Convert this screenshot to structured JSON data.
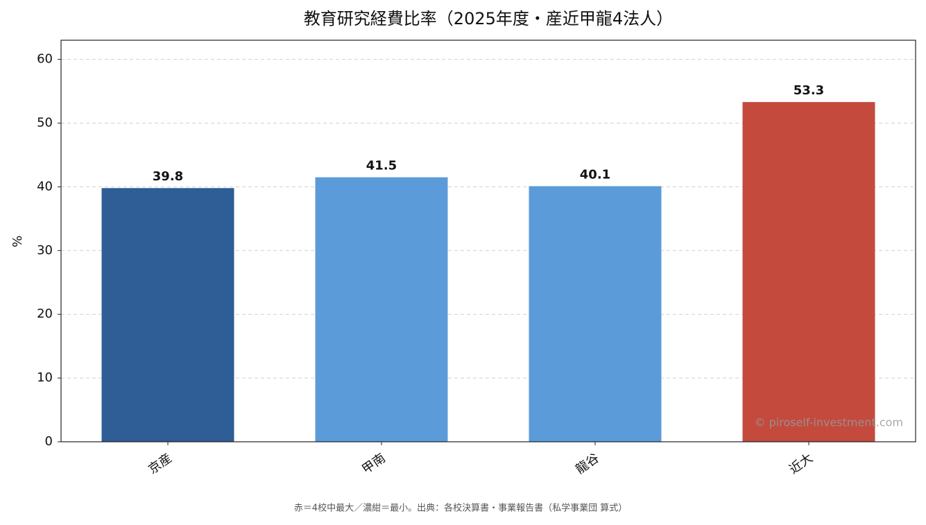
{
  "chart_data": {
    "type": "bar",
    "title": "教育研究経費比率（2025年度・産近甲龍4法人）",
    "y_label": "%",
    "categories": [
      "京産",
      "甲南",
      "龍谷",
      "近大"
    ],
    "values": [
      39.8,
      41.5,
      40.1,
      53.3
    ],
    "colors": [
      "#2f5d95",
      "#5b9bd9",
      "#5b9bd9",
      "#c44a3e"
    ],
    "ylim": [
      0,
      63
    ],
    "yticks": [
      0,
      10,
      20,
      30,
      40,
      50,
      60
    ],
    "grid": true,
    "footnote": "赤＝4校中最大／濃紺＝最小。出典：各校決算書・事業報告書（私学事業団 算式）",
    "watermark": "© piroself-investment.com"
  }
}
